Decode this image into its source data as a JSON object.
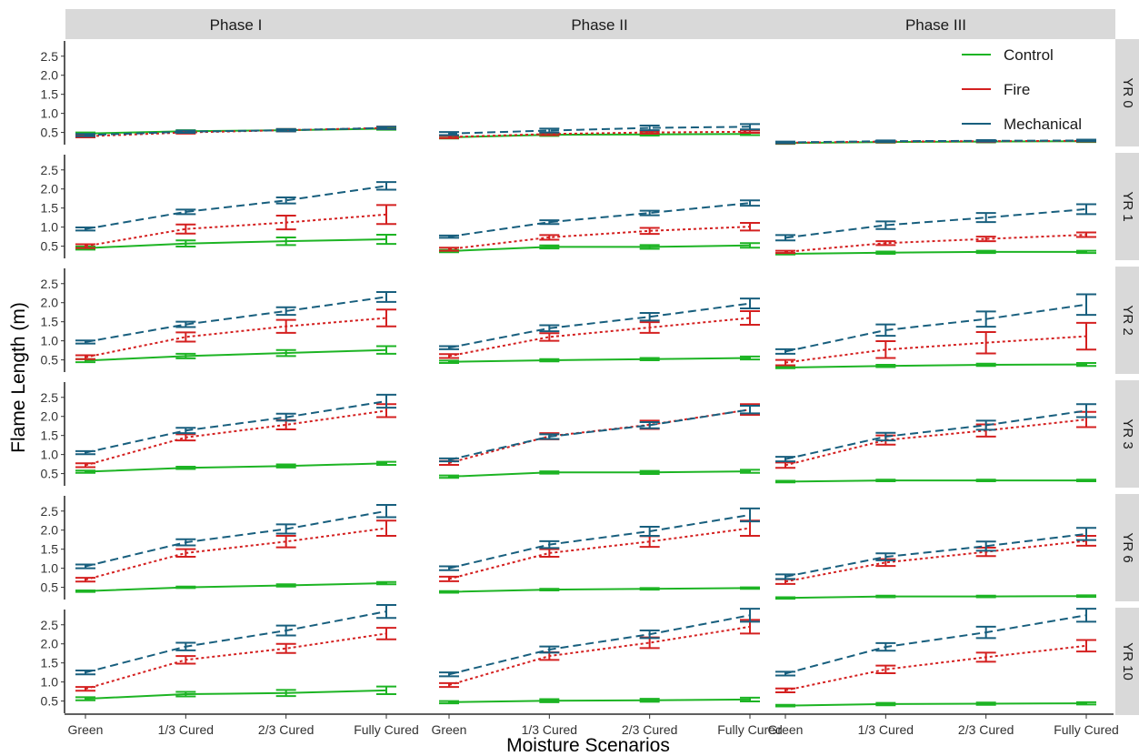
{
  "chart_data": {
    "type": "line",
    "xlabel": "Moisture Scenarios",
    "ylabel": "Flame Length (m)",
    "categories": [
      "Green",
      "1/3 Cured",
      "2/3 Cured",
      "Fully Cured"
    ],
    "y_ticks": [
      "0.5",
      "1.0",
      "1.5",
      "2.0",
      "2.5"
    ],
    "ylim": [
      0.18,
      2.9
    ],
    "grid": false,
    "legend_position": "top-right",
    "columns": [
      "Phase I",
      "Phase II",
      "Phase III"
    ],
    "rows": [
      "YR 0",
      "YR 1",
      "YR 2",
      "YR 3",
      "YR 6",
      "YR 10"
    ],
    "series_styles": [
      {
        "name": "Control",
        "color": "#1db424",
        "dash": "solid"
      },
      {
        "name": "Fire",
        "color": "#d42020",
        "dash": "dotted"
      },
      {
        "name": "Mechanical",
        "color": "#185f7e",
        "dash": "dashed"
      }
    ],
    "panels": [
      {
        "row": "YR 0",
        "column": "Phase I",
        "series": [
          {
            "name": "Control",
            "values": [
              0.47,
              0.53,
              0.56,
              0.6
            ],
            "error": [
              0.03,
              0.03,
              0.03,
              0.03
            ]
          },
          {
            "name": "Fire",
            "values": [
              0.4,
              0.5,
              0.56,
              0.62
            ],
            "error": [
              0.03,
              0.03,
              0.03,
              0.03
            ]
          },
          {
            "name": "Mechanical",
            "values": [
              0.43,
              0.52,
              0.56,
              0.62
            ],
            "error": [
              0.03,
              0.03,
              0.03,
              0.03
            ]
          }
        ]
      },
      {
        "row": "YR 0",
        "column": "Phase II",
        "series": [
          {
            "name": "Control",
            "values": [
              0.37,
              0.44,
              0.45,
              0.46
            ],
            "error": [
              0.03,
              0.03,
              0.03,
              0.03
            ]
          },
          {
            "name": "Fire",
            "values": [
              0.38,
              0.46,
              0.5,
              0.52
            ],
            "error": [
              0.03,
              0.03,
              0.03,
              0.03
            ]
          },
          {
            "name": "Mechanical",
            "values": [
              0.47,
              0.55,
              0.62,
              0.65
            ],
            "error": [
              0.04,
              0.05,
              0.06,
              0.07
            ]
          }
        ]
      },
      {
        "row": "YR 0",
        "column": "Phase III",
        "series": [
          {
            "name": "Control",
            "values": [
              0.22,
              0.25,
              0.26,
              0.27
            ],
            "error": [
              0.02,
              0.02,
              0.02,
              0.02
            ]
          },
          {
            "name": "Fire",
            "values": [
              0.23,
              0.26,
              0.27,
              0.28
            ],
            "error": [
              0.02,
              0.02,
              0.02,
              0.02
            ]
          },
          {
            "name": "Mechanical",
            "values": [
              0.24,
              0.27,
              0.28,
              0.29
            ],
            "error": [
              0.02,
              0.02,
              0.02,
              0.02
            ]
          }
        ]
      },
      {
        "row": "YR 1",
        "column": "Phase I",
        "series": [
          {
            "name": "Control",
            "values": [
              0.45,
              0.57,
              0.63,
              0.68
            ],
            "error": [
              0.04,
              0.08,
              0.1,
              0.12
            ]
          },
          {
            "name": "Fire",
            "values": [
              0.5,
              0.95,
              1.12,
              1.33
            ],
            "error": [
              0.05,
              0.12,
              0.18,
              0.25
            ]
          },
          {
            "name": "Mechanical",
            "values": [
              0.95,
              1.4,
              1.7,
              2.08
            ],
            "error": [
              0.04,
              0.06,
              0.08,
              0.1
            ]
          }
        ]
      },
      {
        "row": "YR 1",
        "column": "Phase II",
        "series": [
          {
            "name": "Control",
            "values": [
              0.37,
              0.48,
              0.48,
              0.52
            ],
            "error": [
              0.03,
              0.04,
              0.05,
              0.06
            ]
          },
          {
            "name": "Fire",
            "values": [
              0.42,
              0.73,
              0.9,
              1.01
            ],
            "error": [
              0.04,
              0.06,
              0.08,
              0.1
            ]
          },
          {
            "name": "Mechanical",
            "values": [
              0.75,
              1.13,
              1.37,
              1.63
            ],
            "error": [
              0.03,
              0.05,
              0.06,
              0.07
            ]
          }
        ]
      },
      {
        "row": "YR 1",
        "column": "Phase III",
        "series": [
          {
            "name": "Control",
            "values": [
              0.3,
              0.33,
              0.35,
              0.35
            ],
            "error": [
              0.02,
              0.03,
              0.03,
              0.03
            ]
          },
          {
            "name": "Fire",
            "values": [
              0.35,
              0.58,
              0.69,
              0.8
            ],
            "error": [
              0.03,
              0.05,
              0.06,
              0.06
            ]
          },
          {
            "name": "Mechanical",
            "values": [
              0.72,
              1.05,
              1.25,
              1.47
            ],
            "error": [
              0.07,
              0.1,
              0.12,
              0.13
            ]
          }
        ]
      },
      {
        "row": "YR 2",
        "column": "Phase I",
        "series": [
          {
            "name": "Control",
            "values": [
              0.48,
              0.6,
              0.68,
              0.76
            ],
            "error": [
              0.04,
              0.06,
              0.08,
              0.1
            ]
          },
          {
            "name": "Fire",
            "values": [
              0.57,
              1.1,
              1.38,
              1.6
            ],
            "error": [
              0.05,
              0.12,
              0.17,
              0.22
            ]
          },
          {
            "name": "Mechanical",
            "values": [
              0.97,
              1.43,
              1.78,
              2.15
            ],
            "error": [
              0.04,
              0.07,
              0.1,
              0.13
            ]
          }
        ]
      },
      {
        "row": "YR 2",
        "column": "Phase II",
        "series": [
          {
            "name": "Control",
            "values": [
              0.45,
              0.49,
              0.52,
              0.55
            ],
            "error": [
              0.03,
              0.03,
              0.03,
              0.04
            ]
          },
          {
            "name": "Fire",
            "values": [
              0.6,
              1.1,
              1.35,
              1.6
            ],
            "error": [
              0.05,
              0.1,
              0.14,
              0.18
            ]
          },
          {
            "name": "Mechanical",
            "values": [
              0.82,
              1.33,
              1.63,
              1.98
            ],
            "error": [
              0.04,
              0.08,
              0.1,
              0.13
            ]
          }
        ]
      },
      {
        "row": "YR 2",
        "column": "Phase III",
        "series": [
          {
            "name": "Control",
            "values": [
              0.3,
              0.34,
              0.37,
              0.38
            ],
            "error": [
              0.02,
              0.03,
              0.03,
              0.04
            ]
          },
          {
            "name": "Fire",
            "values": [
              0.43,
              0.77,
              0.95,
              1.12
            ],
            "error": [
              0.07,
              0.22,
              0.28,
              0.35
            ]
          },
          {
            "name": "Mechanical",
            "values": [
              0.72,
              1.28,
              1.57,
              1.95
            ],
            "error": [
              0.06,
              0.15,
              0.2,
              0.27
            ]
          }
        ]
      },
      {
        "row": "YR 3",
        "column": "Phase I",
        "series": [
          {
            "name": "Control",
            "values": [
              0.55,
              0.65,
              0.7,
              0.77
            ],
            "error": [
              0.03,
              0.03,
              0.04,
              0.04
            ]
          },
          {
            "name": "Fire",
            "values": [
              0.72,
              1.45,
              1.78,
              2.15
            ],
            "error": [
              0.05,
              0.08,
              0.12,
              0.17
            ]
          },
          {
            "name": "Mechanical",
            "values": [
              1.05,
              1.63,
              1.98,
              2.4
            ],
            "error": [
              0.04,
              0.07,
              0.09,
              0.17
            ]
          }
        ]
      },
      {
        "row": "YR 3",
        "column": "Phase II",
        "series": [
          {
            "name": "Control",
            "values": [
              0.42,
              0.53,
              0.53,
              0.56
            ],
            "error": [
              0.03,
              0.03,
              0.04,
              0.04
            ]
          },
          {
            "name": "Fire",
            "values": [
              0.78,
              1.48,
              1.78,
              2.18
            ],
            "error": [
              0.05,
              0.08,
              0.11,
              0.14
            ]
          },
          {
            "name": "Mechanical",
            "values": [
              0.86,
              1.47,
              1.77,
              2.18
            ],
            "error": [
              0.04,
              0.06,
              0.08,
              0.1
            ]
          }
        ]
      },
      {
        "row": "YR 3",
        "column": "Phase III",
        "series": [
          {
            "name": "Control",
            "values": [
              0.29,
              0.32,
              0.32,
              0.32
            ],
            "error": [
              0.02,
              0.02,
              0.02,
              0.02
            ]
          },
          {
            "name": "Fire",
            "values": [
              0.72,
              1.38,
              1.63,
              1.92
            ],
            "error": [
              0.07,
              0.12,
              0.16,
              0.2
            ]
          },
          {
            "name": "Mechanical",
            "values": [
              0.88,
              1.47,
              1.77,
              2.15
            ],
            "error": [
              0.06,
              0.1,
              0.12,
              0.17
            ]
          }
        ]
      },
      {
        "row": "YR 6",
        "column": "Phase I",
        "series": [
          {
            "name": "Control",
            "values": [
              0.4,
              0.5,
              0.55,
              0.61
            ],
            "error": [
              0.02,
              0.02,
              0.03,
              0.03
            ]
          },
          {
            "name": "Fire",
            "values": [
              0.7,
              1.4,
              1.7,
              2.05
            ],
            "error": [
              0.05,
              0.1,
              0.15,
              0.2
            ]
          },
          {
            "name": "Mechanical",
            "values": [
              1.05,
              1.68,
              2.03,
              2.5
            ],
            "error": [
              0.05,
              0.08,
              0.12,
              0.16
            ]
          }
        ]
      },
      {
        "row": "YR 6",
        "column": "Phase II",
        "series": [
          {
            "name": "Control",
            "values": [
              0.38,
              0.44,
              0.46,
              0.48
            ],
            "error": [
              0.02,
              0.02,
              0.02,
              0.02
            ]
          },
          {
            "name": "Fire",
            "values": [
              0.72,
              1.4,
              1.7,
              2.05
            ],
            "error": [
              0.06,
              0.1,
              0.14,
              0.2
            ]
          },
          {
            "name": "Mechanical",
            "values": [
              1.0,
              1.62,
              1.97,
              2.4
            ],
            "error": [
              0.05,
              0.09,
              0.12,
              0.17
            ]
          }
        ]
      },
      {
        "row": "YR 6",
        "column": "Phase III",
        "series": [
          {
            "name": "Control",
            "values": [
              0.22,
              0.26,
              0.26,
              0.27
            ],
            "error": [
              0.02,
              0.02,
              0.02,
              0.02
            ]
          },
          {
            "name": "Fire",
            "values": [
              0.65,
              1.15,
              1.43,
              1.72
            ],
            "error": [
              0.06,
              0.09,
              0.11,
              0.13
            ]
          },
          {
            "name": "Mechanical",
            "values": [
              0.78,
              1.3,
              1.58,
              1.9
            ],
            "error": [
              0.06,
              0.09,
              0.12,
              0.16
            ]
          }
        ]
      },
      {
        "row": "YR 10",
        "column": "Phase I",
        "series": [
          {
            "name": "Control",
            "values": [
              0.56,
              0.68,
              0.71,
              0.78
            ],
            "error": [
              0.04,
              0.06,
              0.08,
              0.1
            ]
          },
          {
            "name": "Fire",
            "values": [
              0.82,
              1.58,
              1.88,
              2.27
            ],
            "error": [
              0.05,
              0.1,
              0.12,
              0.15
            ]
          },
          {
            "name": "Mechanical",
            "values": [
              1.25,
              1.93,
              2.35,
              2.85
            ],
            "error": [
              0.05,
              0.1,
              0.13,
              0.17
            ]
          }
        ]
      },
      {
        "row": "YR 10",
        "column": "Phase II",
        "series": [
          {
            "name": "Control",
            "values": [
              0.47,
              0.51,
              0.52,
              0.54
            ],
            "error": [
              0.03,
              0.04,
              0.04,
              0.05
            ]
          },
          {
            "name": "Fire",
            "values": [
              0.92,
              1.68,
              2.03,
              2.45
            ],
            "error": [
              0.05,
              0.1,
              0.14,
              0.18
            ]
          },
          {
            "name": "Mechanical",
            "values": [
              1.2,
              1.85,
              2.25,
              2.75
            ],
            "error": [
              0.05,
              0.08,
              0.1,
              0.17
            ]
          }
        ]
      },
      {
        "row": "YR 10",
        "column": "Phase III",
        "series": [
          {
            "name": "Control",
            "values": [
              0.38,
              0.42,
              0.43,
              0.44
            ],
            "error": [
              0.02,
              0.03,
              0.03,
              0.03
            ]
          },
          {
            "name": "Fire",
            "values": [
              0.78,
              1.33,
              1.65,
              1.95
            ],
            "error": [
              0.05,
              0.1,
              0.12,
              0.15
            ]
          },
          {
            "name": "Mechanical",
            "values": [
              1.22,
              1.92,
              2.3,
              2.75
            ],
            "error": [
              0.05,
              0.1,
              0.15,
              0.17
            ]
          }
        ]
      }
    ]
  }
}
